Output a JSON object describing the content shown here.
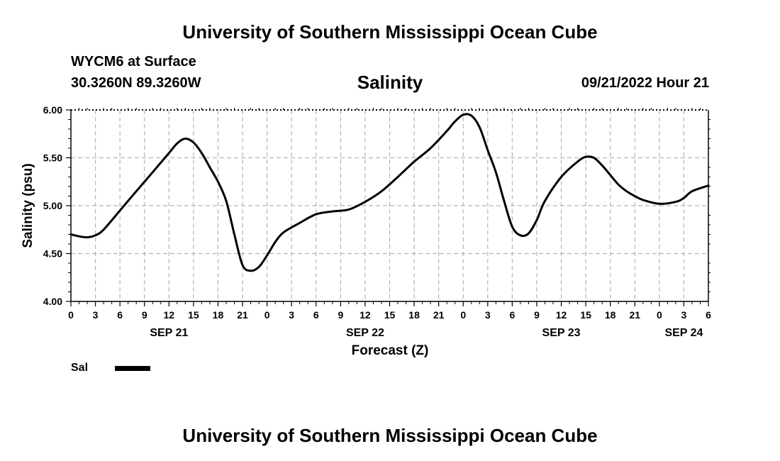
{
  "header": {
    "title": "University of Southern Mississippi Ocean Cube",
    "station": "WYCM6 at Surface",
    "coordinates": "30.3260N  89.3260W",
    "chart_title": "Salinity",
    "datetime": "09/21/2022 Hour 21"
  },
  "legend": {
    "label": "Sal"
  },
  "footer": {
    "title": "University of Southern Mississippi Ocean Cube"
  },
  "chart_data": {
    "type": "line",
    "title": "Salinity",
    "xlabel": "Forecast (Z)",
    "ylabel": "Salinity (psu)",
    "xlim": [
      0,
      78
    ],
    "ylim": [
      4.0,
      6.0
    ],
    "grid": true,
    "legend_position": "bottom-left",
    "y_ticks": [
      4.0,
      4.5,
      5.0,
      5.5,
      6.0
    ],
    "y_tick_labels": [
      "4.00",
      "4.50",
      "5.00",
      "5.50",
      "6.00"
    ],
    "x_tick_labels": [
      "0",
      "3",
      "6",
      "9",
      "12",
      "15",
      "18",
      "21",
      "0",
      "3",
      "6",
      "9",
      "12",
      "15",
      "18",
      "21",
      "0",
      "3",
      "6",
      "9",
      "12",
      "15",
      "18",
      "21",
      "0",
      "3",
      "6"
    ],
    "date_labels": [
      {
        "hour": 12,
        "label": "SEP 21"
      },
      {
        "hour": 36,
        "label": "SEP 22"
      },
      {
        "hour": 60,
        "label": "SEP 23"
      },
      {
        "hour": 75,
        "label": "SEP 24"
      }
    ],
    "series": [
      {
        "name": "Sal",
        "x": [
          0,
          1,
          2,
          3,
          4,
          6,
          8,
          10,
          12,
          13,
          14,
          15,
          16,
          17,
          18,
          19,
          20,
          21,
          22,
          23,
          24,
          25,
          26,
          28,
          30,
          32,
          34,
          36,
          38,
          40,
          42,
          44,
          46,
          47,
          48,
          49,
          50,
          51,
          52,
          53,
          54,
          55,
          56,
          57,
          58,
          60,
          62,
          63,
          64,
          65,
          66,
          67,
          68,
          69,
          70,
          72,
          74,
          75,
          76,
          78
        ],
        "values": [
          4.7,
          4.68,
          4.67,
          4.69,
          4.75,
          4.95,
          5.15,
          5.35,
          5.55,
          5.65,
          5.7,
          5.66,
          5.55,
          5.4,
          5.25,
          5.05,
          4.7,
          4.38,
          4.32,
          4.36,
          4.48,
          4.62,
          4.72,
          4.82,
          4.91,
          4.94,
          4.96,
          5.04,
          5.15,
          5.3,
          5.46,
          5.6,
          5.78,
          5.88,
          5.95,
          5.94,
          5.82,
          5.58,
          5.35,
          5.05,
          4.78,
          4.69,
          4.71,
          4.85,
          5.05,
          5.3,
          5.46,
          5.51,
          5.5,
          5.42,
          5.32,
          5.22,
          5.15,
          5.1,
          5.06,
          5.02,
          5.04,
          5.08,
          5.15,
          5.21
        ]
      }
    ]
  }
}
